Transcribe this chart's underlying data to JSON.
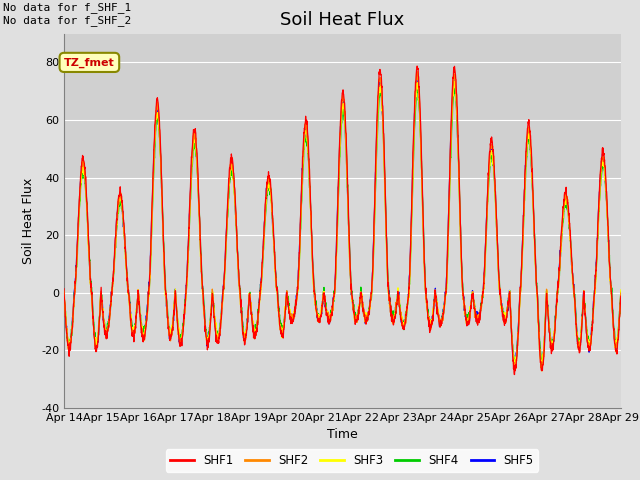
{
  "title": "Soil Heat Flux",
  "ylabel": "Soil Heat Flux",
  "xlabel": "Time",
  "ylim": [
    -40,
    90
  ],
  "yticks": [
    -40,
    -20,
    0,
    20,
    40,
    60,
    80
  ],
  "x_tick_labels": [
    "Apr 14",
    "Apr 15",
    "Apr 16",
    "Apr 17",
    "Apr 18",
    "Apr 19",
    "Apr 20",
    "Apr 21",
    "Apr 22",
    "Apr 23",
    "Apr 24",
    "Apr 25",
    "Apr 26",
    "Apr 27",
    "Apr 28",
    "Apr 29"
  ],
  "colors": {
    "SHF1": "#ff0000",
    "SHF2": "#ff8800",
    "SHF3": "#ffff00",
    "SHF4": "#00cc00",
    "SHF5": "#0000ff"
  },
  "annotation_text": "No data for f_SHF_1\nNo data for f_SHF_2",
  "tz_label": "TZ_fmet",
  "background_color": "#e0e0e0",
  "plot_bg_color": "#e0e0e0",
  "grid_color": "#ffffff",
  "title_fontsize": 13,
  "axis_fontsize": 9,
  "tick_fontsize": 8,
  "day_peaks": [
    47,
    35,
    67,
    57,
    47,
    41,
    60,
    70,
    77,
    78,
    78,
    53,
    59,
    35,
    49
  ],
  "night_depths": [
    -20,
    -15,
    -16,
    -18,
    -17,
    -15,
    -10,
    -10,
    -10,
    -12,
    -11,
    -10,
    -27,
    -20,
    -20
  ],
  "n_days": 15
}
